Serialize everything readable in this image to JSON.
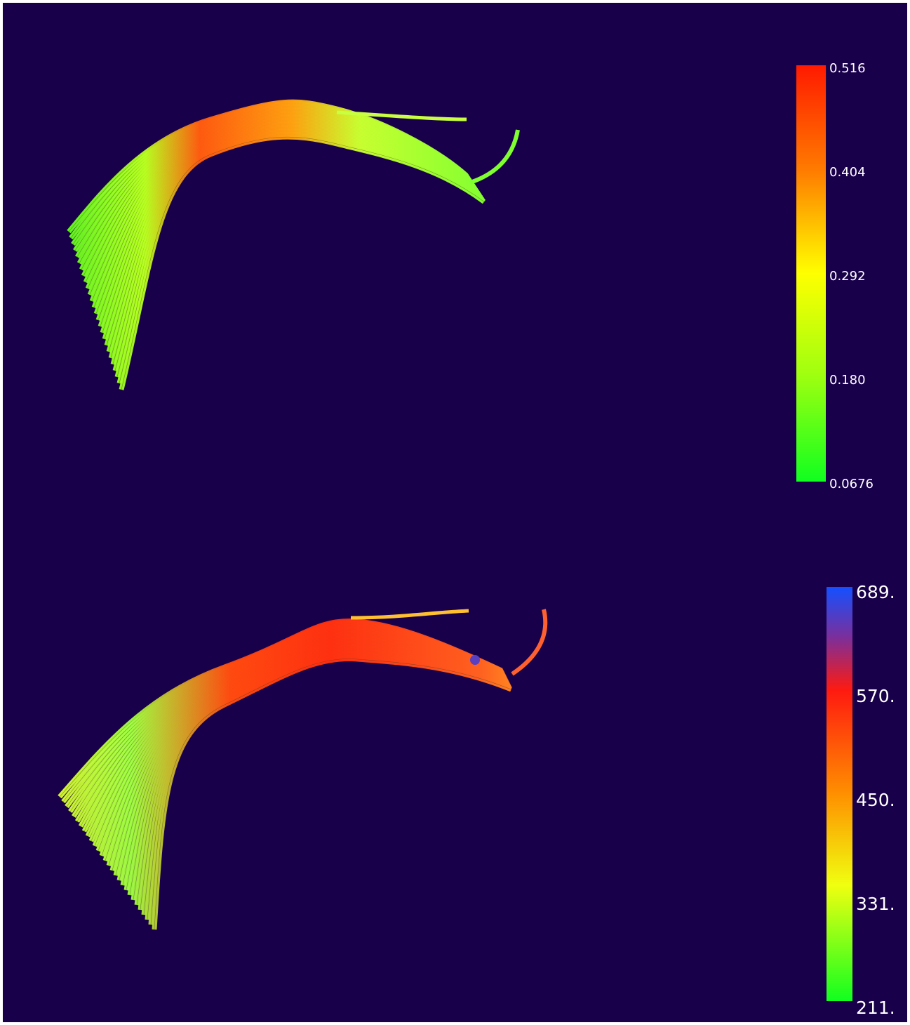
{
  "panels": [
    {
      "colorbar": {
        "labels": [
          "0.516",
          "0.404",
          "0.292",
          "0.180",
          "0.0676"
        ]
      }
    },
    {
      "colorbar": {
        "labels": [
          "689.",
          "570.",
          "450.",
          "331.",
          "211."
        ]
      }
    }
  ]
}
